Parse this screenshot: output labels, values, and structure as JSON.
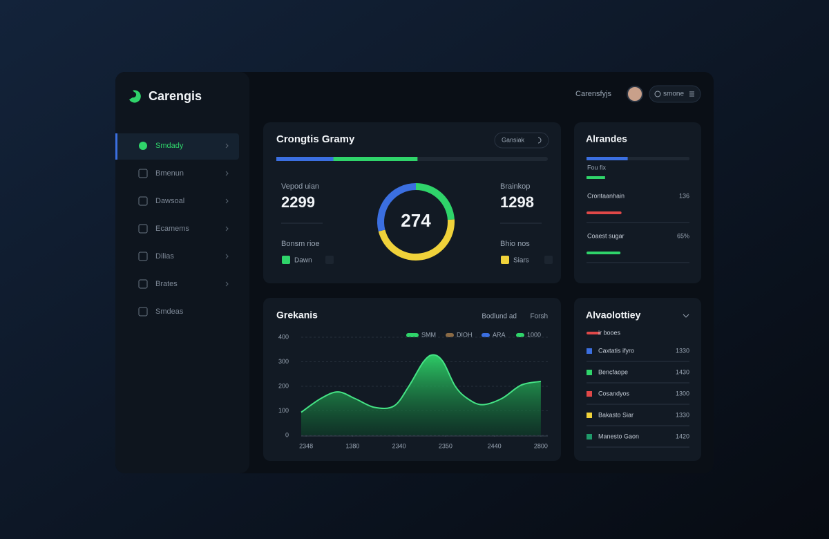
{
  "app": {
    "brand": "Carengis",
    "nav": [
      "Smdady",
      "Bmenun",
      "Dawsoal",
      "Ecamems",
      "Dilias",
      "Brates",
      "Smdeas"
    ],
    "top_label": "Carensfyjs",
    "top_button": "smone"
  },
  "overview": {
    "title": "Crongtis Gramy",
    "button": "Gansiak",
    "progress": [
      {
        "color": "#3b6fe0",
        "value": 21
      },
      {
        "color": "#2fd46a",
        "value": 31
      }
    ],
    "left": {
      "label": "Vepod uian",
      "value": 2299,
      "sub": "Bonsm rioe",
      "legend": "Dawn",
      "color": "#2fd46a"
    },
    "right": {
      "label": "Brainkop",
      "value": 1298,
      "sub": "Bhio nos",
      "legend": "Siars",
      "color": "#f0d23a"
    },
    "donut": {
      "center": "274",
      "series": [
        {
          "color": "#2fd46a",
          "value": 24
        },
        {
          "color": "#f0d23a",
          "value": 47
        },
        {
          "color": "#3b6fe0",
          "value": 29
        }
      ]
    }
  },
  "alerts": {
    "title": "Alrandes",
    "top_bar": {
      "color": "#3b6fe0",
      "value": 40
    },
    "label": "Fou fix",
    "label_bar": {
      "color": "#2fd46a",
      "value": 18
    },
    "rows": [
      {
        "name": "Crontaanhain",
        "value_label": "136",
        "bar": 34,
        "color": "#e04848"
      },
      {
        "name": "Coaest sugar",
        "value_label": "65%",
        "bar": 33,
        "color": "#2fd46a"
      }
    ]
  },
  "chart_data": {
    "type": "area",
    "title": "Grekanis",
    "links": [
      "Bodlund ad",
      "Forsh"
    ],
    "legend": [
      {
        "name": "SMM",
        "color": "#2fd46a"
      },
      {
        "name": "DIOH",
        "color": "#8a6a45"
      },
      {
        "name": "ARA",
        "color": "#3b6fe0"
      },
      {
        "name": "1000",
        "color": "#2fd46a"
      }
    ],
    "x": [
      0,
      8,
      15,
      22,
      30,
      38,
      44,
      50,
      54,
      58,
      63,
      68,
      74,
      82,
      90,
      98
    ],
    "series": [
      {
        "color": "#2fd46a",
        "values": [
          94,
          150,
          177,
          150,
          114,
          120,
          200,
          300,
          328,
          300,
          200,
          150,
          125,
          150,
          205,
          220
        ]
      }
    ],
    "xlim": [
      0,
      100
    ],
    "xticks": [
      {
        "value": 2,
        "label": "2348"
      },
      {
        "value": 21,
        "label": "1380"
      },
      {
        "value": 40,
        "label": "2340"
      },
      {
        "value": 59,
        "label": "2350"
      },
      {
        "value": 79,
        "label": "2440"
      },
      {
        "value": 98,
        "label": "2800"
      }
    ],
    "ylim": [
      0,
      400
    ],
    "yticks": [
      0,
      100,
      200,
      300,
      400
    ],
    "grid": true
  },
  "activity": {
    "title": "Alvaolottiey",
    "tag": "ir booes",
    "tag_color": "#e04848",
    "rows": [
      {
        "name": "Caxtatis ifyro",
        "value": 1330,
        "color": "#3b6fe0"
      },
      {
        "name": "Bencfaope",
        "value": 1430,
        "color": "#2fd46a"
      },
      {
        "name": "Cosandyos",
        "value": 1300,
        "color": "#e04848"
      },
      {
        "name": "Bakasto Siar",
        "value": 1330,
        "color": "#f0d23a"
      },
      {
        "name": "Manesto Gaon",
        "value": 1420,
        "color": "#1f9a6a"
      }
    ]
  }
}
